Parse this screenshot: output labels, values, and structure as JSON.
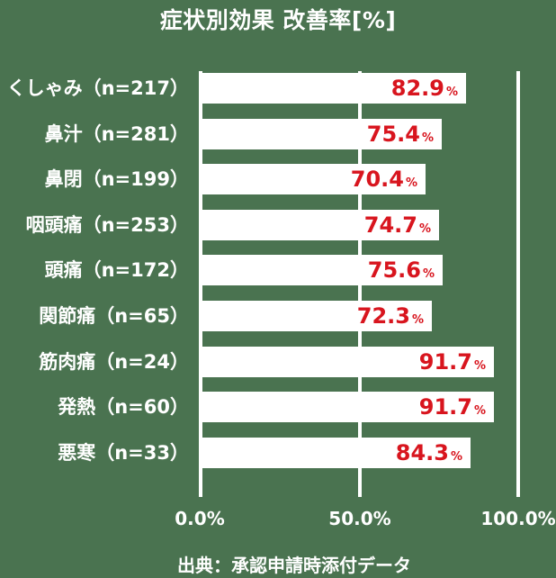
{
  "chart_data": {
    "type": "bar",
    "orientation": "horizontal",
    "title": "症状別効果 改善率[%]",
    "categories": [
      "くしゃみ（n=217）",
      "鼻汁（n=281）",
      "鼻閉（n=199）",
      "咽頭痛（n=253）",
      "頭痛（n=172）",
      "関節痛（n=65）",
      "筋肉痛（n=24）",
      "発熱（n=60）",
      "悪寒（n=33）"
    ],
    "values": [
      82.9,
      75.4,
      70.4,
      74.7,
      75.6,
      72.3,
      91.7,
      91.7,
      84.3
    ],
    "value_labels": [
      "82.9",
      "75.4",
      "70.4",
      "74.7",
      "75.6",
      "72.3",
      "91.7",
      "91.7",
      "84.3"
    ],
    "value_suffix": "%",
    "xlim": [
      0,
      100
    ],
    "x_ticks": [
      "0.0%",
      "50.0%",
      "100.0%"
    ],
    "x_tick_values": [
      0,
      50,
      100
    ],
    "gridlines_at_percent": [
      0,
      50,
      100
    ],
    "grid": "vertical-lines-on",
    "legend": "none",
    "source_note": "出典：承認申請時添付データ",
    "colors": {
      "background": "#4a7350",
      "bar": "#ffffff",
      "value_text": "#d8151e",
      "axis_text": "#ffffff",
      "gridline": "#ffffff",
      "title_text": "#ffffff"
    }
  }
}
